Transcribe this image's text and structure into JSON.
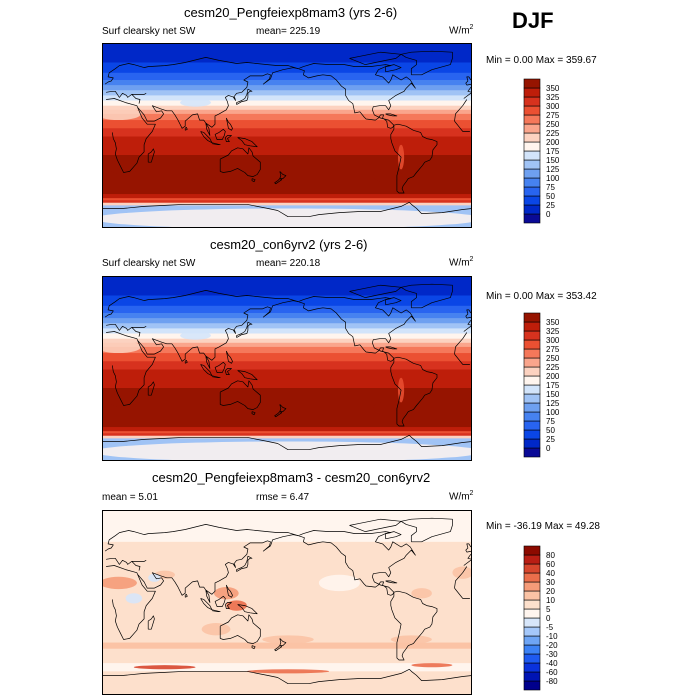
{
  "season": "DJF",
  "panels": [
    {
      "title": "cesm20_Pengfeiexp8mam3 (yrs 2-6)",
      "left_label": "Surf clearsky net SW",
      "center_label": "mean= 225.19",
      "units_base": "W/m",
      "units_sup": "2",
      "minmax": "Min =   0.00 Max = 359.67",
      "field": "abs"
    },
    {
      "title": "cesm20_con6yrv2 (yrs 2-6)",
      "left_label": "Surf clearsky net SW",
      "center_label": "mean= 220.18",
      "units_base": "W/m",
      "units_sup": "2",
      "minmax": "Min =   0.00 Max = 353.42",
      "field": "abs"
    },
    {
      "title": "cesm20_Pengfeiexp8mam3 - cesm20_con6yrv2",
      "left_label": "mean =    5.01",
      "center_label": "rmse =    6.47",
      "units_base": "W/m",
      "units_sup": "2",
      "minmax": "Min = -36.19 Max =  49.28",
      "field": "diff"
    }
  ],
  "chart_data": [
    {
      "type": "heatmap",
      "title": "cesm20_Pengfeiexp8mam3 (yrs 2-6)",
      "variable": "Surf clearsky net SW",
      "units": "W/m2",
      "mean": 225.19,
      "min": 0.0,
      "max": 359.67,
      "contour_levels": [
        0,
        25,
        50,
        75,
        100,
        125,
        150,
        175,
        200,
        225,
        250,
        275,
        300,
        325,
        350
      ],
      "colors": [
        "#0a0a96",
        "#0028c8",
        "#0a46e6",
        "#2864f0",
        "#4682f0",
        "#6ea0f0",
        "#a0c3f5",
        "#d2e4fa",
        "#fff5ee",
        "#fcd2c0",
        "#faa58c",
        "#f5785a",
        "#eb5032",
        "#d7321e",
        "#be1e0a",
        "#961400"
      ]
    },
    {
      "type": "heatmap",
      "title": "cesm20_con6yrv2 (yrs 2-6)",
      "variable": "Surf clearsky net SW",
      "units": "W/m2",
      "mean": 220.18,
      "min": 0.0,
      "max": 353.42,
      "contour_levels": [
        0,
        25,
        50,
        75,
        100,
        125,
        150,
        175,
        200,
        225,
        250,
        275,
        300,
        325,
        350
      ],
      "colors": [
        "#0a0a96",
        "#0028c8",
        "#0a46e6",
        "#2864f0",
        "#4682f0",
        "#6ea0f0",
        "#a0c3f5",
        "#d2e4fa",
        "#fff5ee",
        "#fcd2c0",
        "#faa58c",
        "#f5785a",
        "#eb5032",
        "#d7321e",
        "#be1e0a",
        "#961400"
      ]
    },
    {
      "type": "heatmap",
      "title": "cesm20_Pengfeiexp8mam3 - cesm20_con6yrv2",
      "units": "W/m2",
      "mean": 5.01,
      "rmse": 6.47,
      "min": -36.19,
      "max": 49.28,
      "contour_levels": [
        -80,
        -60,
        -40,
        -30,
        -20,
        -10,
        -5,
        0,
        5,
        10,
        20,
        30,
        40,
        60,
        80
      ],
      "colors": [
        "#00008c",
        "#0014b4",
        "#0a32dc",
        "#1e5af0",
        "#3c82f5",
        "#6ea5f5",
        "#a5c8fa",
        "#d7e6fa",
        "#fff5ee",
        "#fde0cc",
        "#fbc3a5",
        "#f59b78",
        "#eb6e4b",
        "#d7462d",
        "#b91e14",
        "#8c0a00"
      ]
    }
  ]
}
